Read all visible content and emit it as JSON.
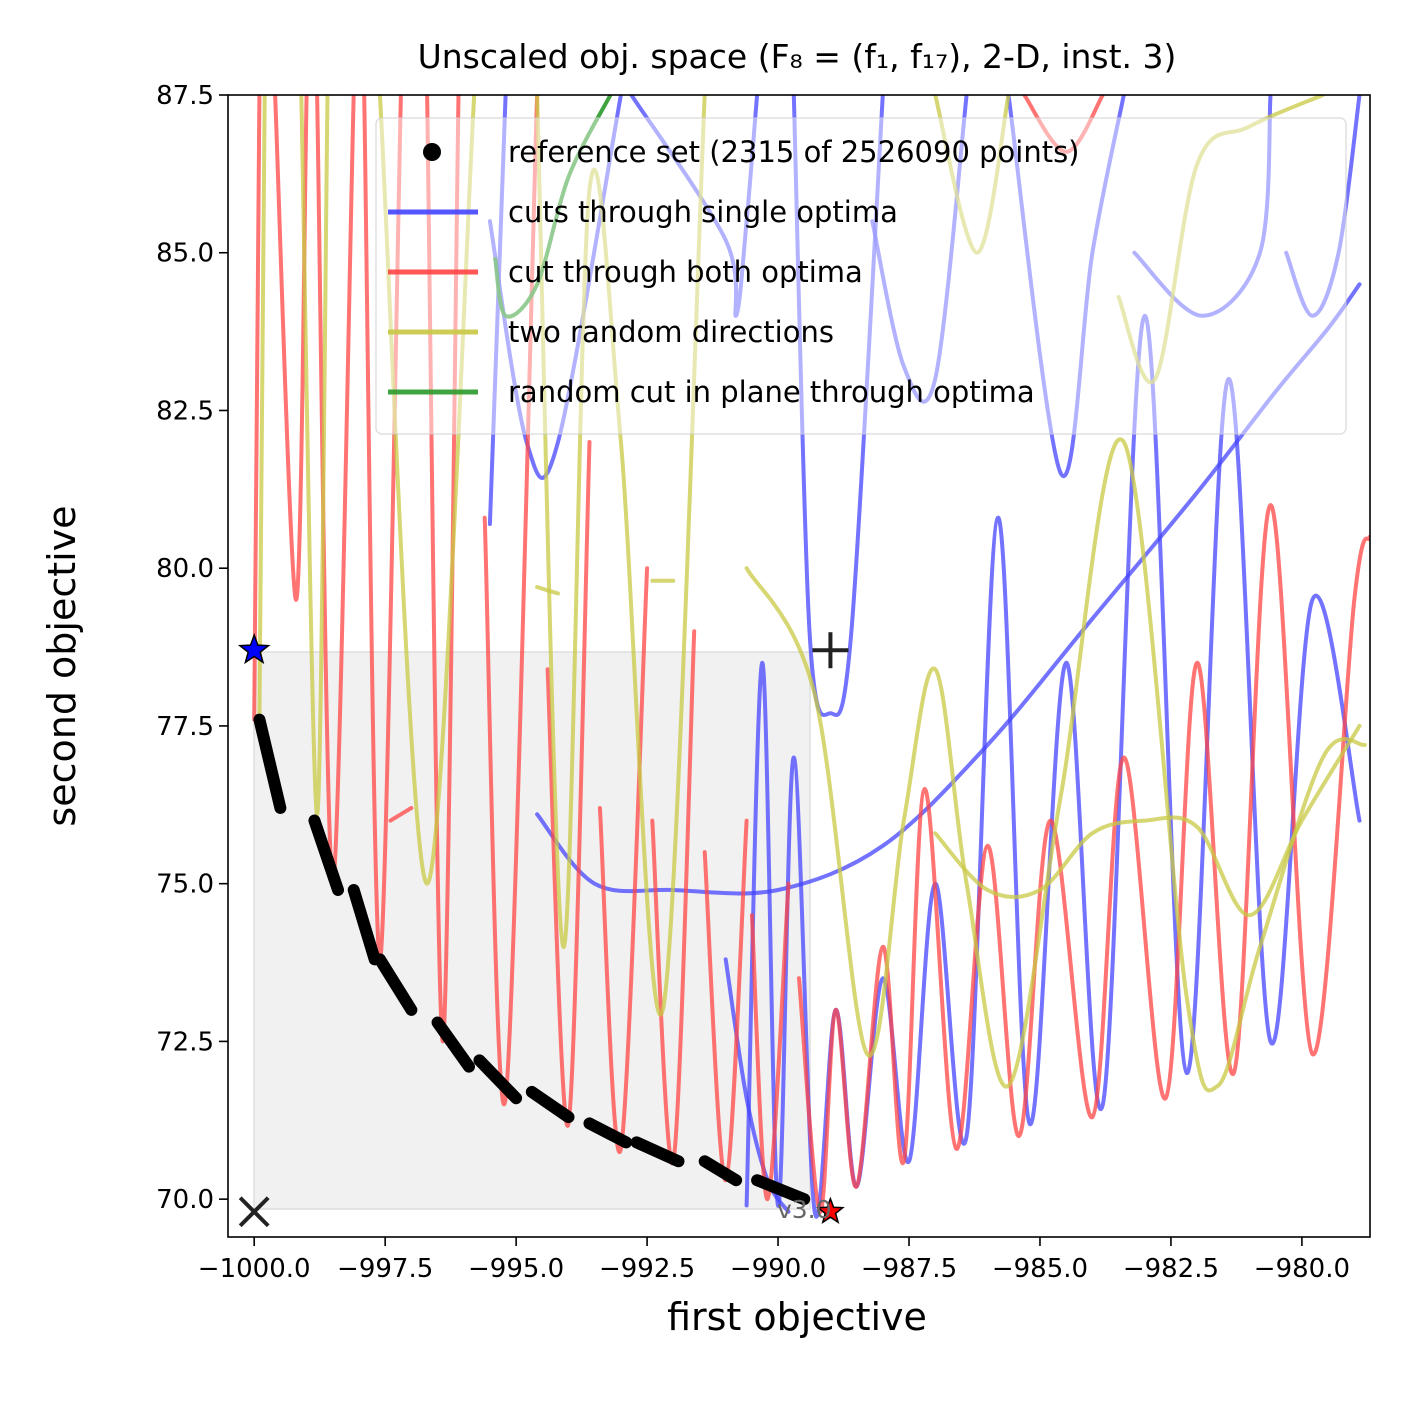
{
  "chart_data": {
    "type": "line",
    "title": "Unscaled obj. space (F₈ = (f₁, f₁₇), 2-D, inst. 3)",
    "xlabel": "first objective",
    "ylabel": "second objective",
    "xlim": [
      -1000.5,
      -978.7
    ],
    "ylim": [
      69.4,
      87.5
    ],
    "xticks": [
      -1000.0,
      -997.5,
      -995.0,
      -992.5,
      -990.0,
      -987.5,
      -985.0,
      -982.5,
      -980.0
    ],
    "xtick_labels": [
      "−1000.0",
      "−997.5",
      "−995.0",
      "−992.5",
      "−990.0",
      "−987.5",
      "−985.0",
      "−982.5",
      "−980.0"
    ],
    "yticks": [
      70.0,
      72.5,
      75.0,
      77.5,
      80.0,
      82.5,
      85.0,
      87.5
    ],
    "ytick_labels": [
      "70.0",
      "72.5",
      "75.0",
      "77.5",
      "80.0",
      "82.5",
      "85.0",
      "87.5"
    ],
    "grid": false,
    "legend_position": "top-right",
    "legend": [
      {
        "label": "reference set (2315 of 2526090 points)",
        "color": "#000000",
        "style": "dot"
      },
      {
        "label": "cuts through single optima",
        "color": "#4444ff",
        "style": "line"
      },
      {
        "label": "cut through both optima",
        "color": "#ff4444",
        "style": "line"
      },
      {
        "label": "two random directions",
        "color": "#c8c844",
        "style": "line"
      },
      {
        "label": "random cut in plane through optima",
        "color": "#2a9a2a",
        "style": "line"
      }
    ],
    "annotations": [
      {
        "label": "v3.0",
        "x": -989.5,
        "y": 69.8,
        "color": "#666666"
      }
    ],
    "markers": {
      "ideal": {
        "x": -1000.0,
        "y": 69.8,
        "symbol": "x"
      },
      "nadir": {
        "x": -989.0,
        "y": 78.7,
        "symbol": "+"
      },
      "optimum_1": {
        "x": -1000.0,
        "y": 78.7,
        "symbol": "star",
        "color": "#0000ff"
      },
      "optimum_2": {
        "x": -989.0,
        "y": 69.8,
        "symbol": "star",
        "color": "#ff0000"
      }
    },
    "reference_set": [
      {
        "x": [
          -999.9,
          -999.5
        ],
        "y": [
          77.6,
          76.2
        ]
      },
      {
        "x": [
          -998.85,
          -998.4
        ],
        "y": [
          76.0,
          74.9
        ]
      },
      {
        "x": [
          -998.1,
          -997.7
        ],
        "y": [
          74.9,
          73.8
        ]
      },
      {
        "x": [
          -997.6,
          -997.0
        ],
        "y": [
          73.8,
          73.0
        ]
      },
      {
        "x": [
          -996.5,
          -995.9
        ],
        "y": [
          72.8,
          72.1
        ]
      },
      {
        "x": [
          -995.7,
          -995.0
        ],
        "y": [
          72.2,
          71.6
        ]
      },
      {
        "x": [
          -994.7,
          -994.0
        ],
        "y": [
          71.7,
          71.3
        ]
      },
      {
        "x": [
          -993.6,
          -992.9
        ],
        "y": [
          71.2,
          70.9
        ]
      },
      {
        "x": [
          -992.7,
          -991.9
        ],
        "y": [
          70.9,
          70.6
        ]
      },
      {
        "x": [
          -991.4,
          -990.8
        ],
        "y": [
          70.6,
          70.3
        ]
      },
      {
        "x": [
          -990.4,
          -989.5
        ],
        "y": [
          70.3,
          70.0
        ]
      }
    ],
    "series": [
      {
        "name": "cuts through single optima",
        "color": "#4444ff",
        "segments": [
          [
            [
              -995.5,
              80.7
            ],
            [
              -995.2,
              87.5
            ]
          ],
          [
            [
              -995.5,
              85.5
            ],
            [
              -994.8,
              82.0
            ],
            [
              -994.2,
              82.0
            ],
            [
              -993.0,
              87.5
            ]
          ],
          [
            [
              -992.8,
              87.5
            ],
            [
              -991.0,
              85.2
            ],
            [
              -990.8,
              84.0
            ],
            [
              -990.6,
              85.5
            ],
            [
              -990.4,
              87.5
            ]
          ],
          [
            [
              -989.7,
              87.5
            ],
            [
              -989.4,
              79.0
            ],
            [
              -989.0,
              77.7
            ],
            [
              -988.6,
              79.0
            ],
            [
              -988.0,
              87.5
            ]
          ],
          [
            [
              -988.2,
              85.5
            ],
            [
              -987.6,
              83.2
            ],
            [
              -987.0,
              83.0
            ],
            [
              -986.4,
              87.5
            ]
          ],
          [
            [
              -985.6,
              87.5
            ],
            [
              -984.6,
              81.5
            ],
            [
              -984.0,
              85.0
            ],
            [
              -983.4,
              87.5
            ]
          ],
          [
            [
              -983.2,
              85.0
            ],
            [
              -981.9,
              84.0
            ],
            [
              -980.8,
              85.0
            ],
            [
              -980.6,
              87.5
            ]
          ],
          [
            [
              -980.3,
              85.0
            ],
            [
              -979.8,
              84.0
            ],
            [
              -979.3,
              85.0
            ],
            [
              -978.9,
              87.5
            ]
          ],
          [
            [
              -994.6,
              76.1
            ],
            [
              -993.5,
              75.0
            ],
            [
              -992.0,
              74.9
            ],
            [
              -990.0,
              74.9
            ],
            [
              -988.0,
              75.6
            ],
            [
              -986.0,
              77.2
            ],
            [
              -984.0,
              79.2
            ],
            [
              -982.0,
              81.2
            ],
            [
              -980.5,
              82.8
            ],
            [
              -979.5,
              83.8
            ],
            [
              -978.9,
              84.5
            ]
          ],
          [
            [
              -990.6,
              69.9
            ],
            [
              -990.3,
              78.5
            ],
            [
              -990.0,
              69.9
            ],
            [
              -989.7,
              77.0
            ],
            [
              -989.3,
              69.8
            ],
            [
              -988.9,
              73.0
            ],
            [
              -988.5,
              70.2
            ],
            [
              -988.0,
              73.5
            ],
            [
              -987.5,
              70.6
            ],
            [
              -987.0,
              75.0
            ],
            [
              -986.4,
              71.0
            ],
            [
              -985.8,
              80.8
            ],
            [
              -985.2,
              71.2
            ],
            [
              -984.5,
              78.5
            ],
            [
              -983.8,
              71.5
            ],
            [
              -983.0,
              84.0
            ],
            [
              -982.2,
              72.0
            ],
            [
              -981.4,
              83.0
            ],
            [
              -980.6,
              72.5
            ],
            [
              -979.8,
              79.5
            ],
            [
              -978.9,
              76.0
            ]
          ],
          [
            [
              -991.0,
              73.8
            ],
            [
              -990.6,
              71.6
            ],
            [
              -990.2,
              70.3
            ],
            [
              -989.8,
              69.8
            ]
          ]
        ]
      },
      {
        "name": "cut through both optima",
        "color": "#ff4444",
        "segments": [
          [
            [
              -1000.0,
              77.6
            ],
            [
              -999.9,
              87.5
            ]
          ],
          [
            [
              -999.6,
              87.5
            ],
            [
              -999.2,
              79.5
            ],
            [
              -999.0,
              87.5
            ]
          ],
          [
            [
              -998.8,
              87.5
            ],
            [
              -998.5,
              75.0
            ],
            [
              -998.1,
              87.5
            ]
          ],
          [
            [
              -997.9,
              87.5
            ],
            [
              -997.6,
              73.8
            ],
            [
              -997.2,
              87.5
            ]
          ],
          [
            [
              -997.4,
              76.0
            ],
            [
              -997.0,
              76.2
            ]
          ],
          [
            [
              -996.7,
              87.5
            ],
            [
              -996.4,
              72.5
            ],
            [
              -996.1,
              87.5
            ]
          ],
          [
            [
              -995.6,
              80.8
            ],
            [
              -995.2,
              71.6
            ],
            [
              -994.6,
              87.5
            ]
          ],
          [
            [
              -994.4,
              78.4
            ],
            [
              -994.0,
              71.2
            ],
            [
              -993.6,
              82.0
            ]
          ],
          [
            [
              -993.4,
              76.2
            ],
            [
              -993.0,
              70.8
            ],
            [
              -992.5,
              80.0
            ]
          ],
          [
            [
              -992.4,
              76.0
            ],
            [
              -992.0,
              70.6
            ],
            [
              -991.6,
              79.0
            ]
          ],
          [
            [
              -991.4,
              75.5
            ],
            [
              -991.0,
              70.3
            ],
            [
              -990.6,
              76.0
            ]
          ],
          [
            [
              -990.5,
              74.5
            ],
            [
              -990.2,
              70.0
            ],
            [
              -989.8,
              75.0
            ]
          ],
          [
            [
              -989.6,
              73.5
            ],
            [
              -989.2,
              69.8
            ],
            [
              -988.9,
              73.0
            ],
            [
              -988.5,
              70.2
            ],
            [
              -988.0,
              74.0
            ],
            [
              -987.6,
              70.6
            ],
            [
              -987.2,
              76.5
            ],
            [
              -986.6,
              70.8
            ],
            [
              -986.0,
              75.6
            ],
            [
              -985.4,
              71.0
            ],
            [
              -984.8,
              76.0
            ],
            [
              -984.0,
              71.3
            ],
            [
              -983.4,
              77.0
            ],
            [
              -982.6,
              71.6
            ],
            [
              -982.0,
              78.5
            ],
            [
              -981.3,
              72.0
            ],
            [
              -980.6,
              81.0
            ],
            [
              -979.8,
              72.3
            ],
            [
              -979.0,
              79.5
            ],
            [
              -978.7,
              80.5
            ]
          ],
          [
            [
              -985.3,
              87.5
            ],
            [
              -984.5,
              86.6
            ],
            [
              -983.8,
              87.5
            ]
          ]
        ]
      },
      {
        "name": "two random directions",
        "color": "#c8c844",
        "segments": [
          [
            [
              -999.9,
              77.6
            ],
            [
              -999.8,
              87.5
            ]
          ],
          [
            [
              -999.1,
              87.5
            ],
            [
              -998.8,
              76.1
            ],
            [
              -998.6,
              87.5
            ]
          ],
          [
            [
              -997.6,
              87.5
            ],
            [
              -996.7,
              75.0
            ],
            [
              -995.8,
              87.5
            ]
          ],
          [
            [
              -994.6,
              87.5
            ],
            [
              -994.1,
              74.0
            ],
            [
              -993.6,
              86.0
            ],
            [
              -993.0,
              82.0
            ],
            [
              -992.2,
              73.0
            ],
            [
              -991.4,
              87.5
            ]
          ],
          [
            [
              -994.6,
              79.7
            ],
            [
              -994.2,
              79.6
            ]
          ],
          [
            [
              -992.4,
              79.8
            ],
            [
              -992.0,
              79.8
            ]
          ],
          [
            [
              -990.6,
              80.0
            ],
            [
              -989.3,
              78.0
            ],
            [
              -988.3,
              72.3
            ],
            [
              -987.6,
              76.0
            ],
            [
              -987.0,
              78.4
            ],
            [
              -986.4,
              75.0
            ],
            [
              -985.6,
              71.8
            ],
            [
              -984.6,
              76.4
            ],
            [
              -983.4,
              82.0
            ],
            [
              -982.2,
              73.2
            ],
            [
              -981.6,
              71.8
            ],
            [
              -980.8,
              74.0
            ],
            [
              -979.6,
              77.0
            ],
            [
              -978.8,
              77.2
            ]
          ],
          [
            [
              -987.0,
              75.8
            ],
            [
              -986.0,
              74.9
            ],
            [
              -985.0,
              74.9
            ],
            [
              -984.0,
              75.8
            ],
            [
              -983.0,
              76.0
            ],
            [
              -982.0,
              75.9
            ],
            [
              -981.0,
              74.5
            ],
            [
              -980.0,
              76.0
            ],
            [
              -978.9,
              77.5
            ]
          ],
          [
            [
              -987.0,
              87.5
            ],
            [
              -986.2,
              85.0
            ],
            [
              -985.6,
              87.5
            ]
          ],
          [
            [
              -983.5,
              84.3
            ],
            [
              -982.8,
              83.0
            ],
            [
              -982.0,
              86.4
            ],
            [
              -981.0,
              87.0
            ],
            [
              -979.6,
              87.5
            ]
          ]
        ]
      },
      {
        "name": "random cut in plane through optima",
        "color": "#2a9a2a",
        "segments": [
          [
            [
              -995.4,
              84.9
            ],
            [
              -995.2,
              84.0
            ],
            [
              -994.6,
              84.5
            ],
            [
              -994.0,
              86.2
            ],
            [
              -993.2,
              87.5
            ]
          ]
        ]
      }
    ]
  }
}
